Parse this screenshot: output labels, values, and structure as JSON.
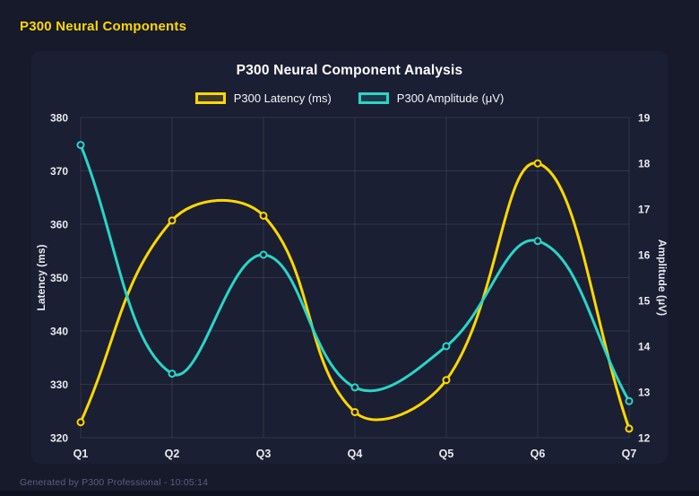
{
  "header": {
    "title": "P300 Neural Components"
  },
  "footer": {
    "text": "Generated by P300 Professional - 10:05:14"
  },
  "colors": {
    "background": "#161a2b",
    "panel_bg": "#1b1f33",
    "accent_yellow": "#FFD700",
    "accent_teal": "#2AD5C6",
    "text_primary": "#ffffff",
    "tick_text": "#e8eaf0",
    "footer_text": "#596180",
    "gridline": "rgba(255,255,255,0.10)"
  },
  "chart_data": {
    "type": "line",
    "title": "P300 Neural Component Analysis",
    "categories": [
      "Q1",
      "Q2",
      "Q3",
      "Q4",
      "Q5",
      "Q6",
      "Q7"
    ],
    "series": [
      {
        "name": "P300 Latency (ms)",
        "axis": "left",
        "color": "#FFD700",
        "values": [
          322.9,
          360.7,
          361.6,
          324.8,
          330.8,
          371.4,
          321.7
        ]
      },
      {
        "name": "P300 Amplitude (μV)",
        "axis": "right",
        "color": "#2AD5C6",
        "values": [
          18.4,
          13.4,
          16.0,
          13.1,
          14.0,
          16.3,
          12.8
        ]
      }
    ],
    "left_axis": {
      "label": "Latency (ms)",
      "min": 320,
      "max": 380,
      "ticks": [
        380,
        370,
        360,
        350,
        340,
        330,
        320
      ]
    },
    "right_axis": {
      "label": "Amplitude (μV)",
      "min": 12,
      "max": 19,
      "ticks": [
        19,
        18,
        17,
        16,
        15,
        14,
        13,
        12
      ]
    },
    "legend_position": "top",
    "grid": true,
    "line_tension": 0.4
  }
}
